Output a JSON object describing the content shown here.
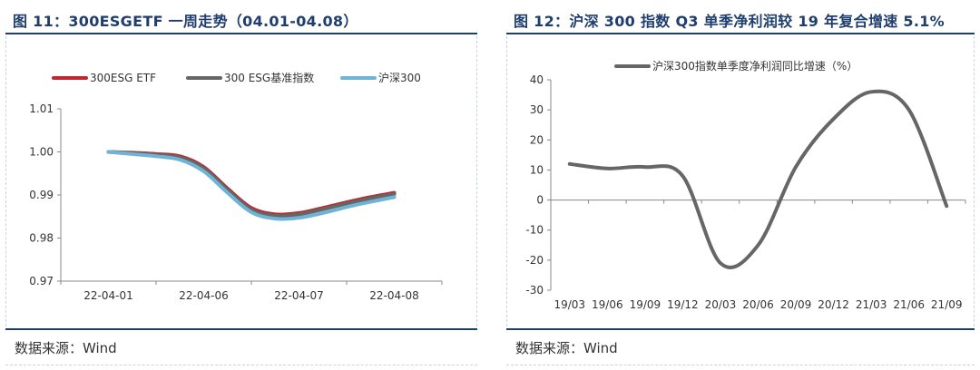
{
  "left_panel": {
    "title": "图 11：300ESGETF 一周走势（04.01-04.08）",
    "source": "数据来源：Wind"
  },
  "right_panel": {
    "title": "图 12：沪深 300 指数 Q3 单季净利润较 19 年复合增速 5.1%",
    "source": "数据来源：Wind"
  },
  "chart_data": [
    {
      "type": "line",
      "title": "300ESGETF 一周走势（04.01-04.08）",
      "xlabel": "",
      "ylabel": "",
      "categories": [
        "22-04-01",
        "22-04-06",
        "22-04-07",
        "22-04-08"
      ],
      "x": [
        0,
        0.25,
        0.5,
        0.75,
        1.0,
        1.25,
        1.5,
        1.75,
        2.0,
        2.25,
        2.5,
        2.75,
        3.0
      ],
      "ylim": [
        0.97,
        1.01
      ],
      "yticks": [
        "0.97",
        "0.98",
        "0.99",
        "1.00",
        "1.01"
      ],
      "legend_position": "top",
      "series": [
        {
          "name": "300ESG ETF",
          "color": "#c0272d",
          "values": [
            1.0,
            0.9998,
            0.9995,
            0.999,
            0.9965,
            0.9915,
            0.987,
            0.9855,
            0.9858,
            0.987,
            0.9883,
            0.9895,
            0.9905
          ]
        },
        {
          "name": "300 ESG基准指数",
          "color": "#666666",
          "values": [
            1.0,
            0.9997,
            0.9993,
            0.9987,
            0.9962,
            0.9912,
            0.9866,
            0.9852,
            0.9855,
            0.9867,
            0.988,
            0.9892,
            0.9902
          ]
        },
        {
          "name": "沪深300",
          "color": "#6fb4d6",
          "values": [
            1.0,
            0.9995,
            0.999,
            0.9982,
            0.9955,
            0.9905,
            0.986,
            0.9845,
            0.9847,
            0.9858,
            0.9872,
            0.9884,
            0.9895
          ]
        }
      ]
    },
    {
      "type": "line",
      "title": "沪深 300 指数 Q3 单季净利润较 19 年复合增速 5.1%",
      "xlabel": "",
      "ylabel": "",
      "categories": [
        "19/03",
        "19/06",
        "19/09",
        "19/12",
        "20/03",
        "20/06",
        "20/09",
        "20/12",
        "21/03",
        "21/06",
        "21/09"
      ],
      "ylim": [
        -30,
        40
      ],
      "yticks": [
        "-30",
        "-20",
        "-10",
        "0",
        "10",
        "20",
        "30",
        "40"
      ],
      "legend_position": "top",
      "series": [
        {
          "name": "沪深300指数单季度净利润同比增速（%）",
          "color": "#666666",
          "values": [
            12,
            10.5,
            11,
            8,
            -21,
            -15,
            11,
            27,
            36,
            30,
            -2
          ]
        }
      ]
    }
  ]
}
